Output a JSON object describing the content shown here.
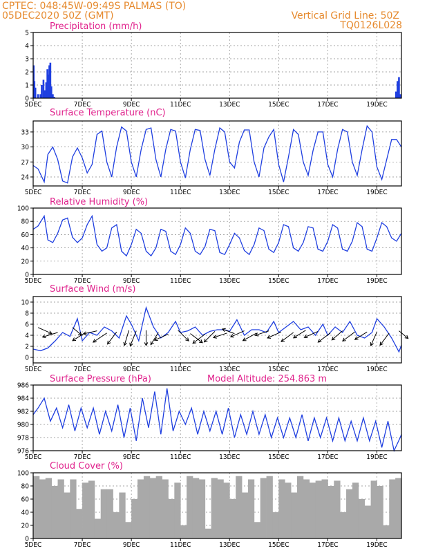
{
  "header": {
    "line1_left": "CPTEC:   048:45W-09:49S   PALMAS (TO)",
    "line2_left": "05DEC2020 50Z (GMT)",
    "line1_right": "Vertical Grid Line: 50Z",
    "line2_right": "TQ0126L028"
  },
  "colors": {
    "header": "#e68a2e",
    "title": "#e0228c",
    "series": "#1f3fe0",
    "cloud": "#a9a9a9"
  },
  "chart_data": [
    {
      "type": "bar",
      "title": "Precipitation (mm/h)",
      "x_ticks": [
        "5DEC",
        "7DEC",
        "9DEC",
        "11DEC",
        "13DEC",
        "15DEC",
        "17DEC",
        "19DEC"
      ],
      "y_ticks": [
        0,
        1,
        2,
        3,
        4,
        5
      ],
      "ylim": [
        0,
        5
      ],
      "xlim_days": [
        5,
        20
      ],
      "grid": true,
      "bars": [
        [
          5.02,
          2.5
        ],
        [
          5.05,
          1.3
        ],
        [
          5.09,
          0.8
        ],
        [
          5.2,
          0.3
        ],
        [
          5.3,
          0.3
        ],
        [
          5.35,
          1.0
        ],
        [
          5.42,
          1.4
        ],
        [
          5.48,
          0.6
        ],
        [
          5.53,
          1.2
        ],
        [
          5.58,
          2.2
        ],
        [
          5.62,
          1.8
        ],
        [
          5.66,
          2.5
        ],
        [
          5.7,
          2.7
        ],
        [
          5.74,
          0.9
        ],
        [
          5.8,
          0.3
        ],
        [
          5.86,
          0.1
        ],
        [
          19.78,
          0.5
        ],
        [
          19.84,
          1.3
        ],
        [
          19.9,
          1.6
        ],
        [
          19.95,
          0.3
        ]
      ]
    },
    {
      "type": "line",
      "title": "Surface Temperature (nC)",
      "x_ticks": [
        "5DEC",
        "7DEC",
        "9DEC",
        "11DEC",
        "13DEC",
        "15DEC",
        "17DEC",
        "19DEC"
      ],
      "y_ticks": [
        24,
        27,
        30,
        33
      ],
      "ylim": [
        22.2,
        35.2
      ],
      "xlim_days": [
        5,
        20
      ],
      "grid": true,
      "x": [
        5,
        5.2,
        5.45,
        5.6,
        5.8,
        6.0,
        6.2,
        6.4,
        6.6,
        6.8,
        7.0,
        7.2,
        7.4,
        7.6,
        7.8,
        8.0,
        8.2,
        8.4,
        8.6,
        8.8,
        9.0,
        9.2,
        9.4,
        9.6,
        9.8,
        10.0,
        10.2,
        10.4,
        10.6,
        10.8,
        11.0,
        11.2,
        11.4,
        11.6,
        11.8,
        12.0,
        12.2,
        12.4,
        12.6,
        12.8,
        13.0,
        13.2,
        13.4,
        13.6,
        13.8,
        14.0,
        14.2,
        14.4,
        14.6,
        14.8,
        15.0,
        15.2,
        15.4,
        15.6,
        15.8,
        16.0,
        16.2,
        16.4,
        16.6,
        16.8,
        17.0,
        17.2,
        17.4,
        17.6,
        17.8,
        18.0,
        18.2,
        18.4,
        18.6,
        18.8,
        19.0,
        19.2,
        19.4,
        19.6,
        19.8,
        20.0
      ],
      "y": [
        26.3,
        25.6,
        23.0,
        28.5,
        30.0,
        27.5,
        23.2,
        22.8,
        28.0,
        29.8,
        27.8,
        24.8,
        26.5,
        32.5,
        33.2,
        27.0,
        24.0,
        30.0,
        34.0,
        33.2,
        27.0,
        24.0,
        29.5,
        33.5,
        33.8,
        27.5,
        24.0,
        29.5,
        33.5,
        33.2,
        27.0,
        23.8,
        29.5,
        33.5,
        33.3,
        27.5,
        24.3,
        29.5,
        33.8,
        33.0,
        27.0,
        25.8,
        31.0,
        33.4,
        33.4,
        27.0,
        24.0,
        29.8,
        32.0,
        33.5,
        26.5,
        23.0,
        28.0,
        33.5,
        32.5,
        27.0,
        24.3,
        29.3,
        33.0,
        33.0,
        26.5,
        24.0,
        29.5,
        33.5,
        33.0,
        27.0,
        24.3,
        29.5,
        34.2,
        33.0,
        26.0,
        23.5,
        27.5,
        31.5,
        31.5,
        30.0
      ]
    },
    {
      "type": "line",
      "title": "Relative Humidity (%)",
      "x_ticks": [
        "5DEC",
        "7DEC",
        "9DEC",
        "11DEC",
        "13DEC",
        "15DEC",
        "17DEC",
        "19DEC"
      ],
      "y_ticks": [
        0,
        20,
        40,
        60,
        80,
        100
      ],
      "ylim": [
        0,
        100
      ],
      "xlim_days": [
        5,
        20
      ],
      "grid": true,
      "x": [
        5,
        5.2,
        5.45,
        5.6,
        5.8,
        6.0,
        6.2,
        6.4,
        6.6,
        6.8,
        7.0,
        7.2,
        7.4,
        7.6,
        7.8,
        8.0,
        8.2,
        8.4,
        8.6,
        8.8,
        9.0,
        9.2,
        9.4,
        9.6,
        9.8,
        10.0,
        10.2,
        10.4,
        10.6,
        10.8,
        11.0,
        11.2,
        11.4,
        11.6,
        11.8,
        12.0,
        12.2,
        12.4,
        12.6,
        12.8,
        13.0,
        13.2,
        13.4,
        13.6,
        13.8,
        14.0,
        14.2,
        14.4,
        14.6,
        14.8,
        15.0,
        15.2,
        15.4,
        15.6,
        15.8,
        16.0,
        16.2,
        16.4,
        16.6,
        16.8,
        17.0,
        17.2,
        17.4,
        17.6,
        17.8,
        18.0,
        18.2,
        18.4,
        18.6,
        18.8,
        19.0,
        19.2,
        19.4,
        19.6,
        19.8,
        20.0
      ],
      "y": [
        68,
        73,
        88,
        52,
        48,
        62,
        82,
        85,
        56,
        48,
        55,
        75,
        88,
        45,
        35,
        40,
        70,
        75,
        35,
        28,
        45,
        68,
        62,
        35,
        28,
        40,
        68,
        65,
        35,
        30,
        45,
        70,
        62,
        35,
        30,
        42,
        68,
        66,
        33,
        30,
        45,
        62,
        55,
        36,
        30,
        45,
        70,
        66,
        38,
        33,
        48,
        75,
        72,
        40,
        35,
        48,
        72,
        70,
        38,
        35,
        50,
        75,
        70,
        38,
        35,
        50,
        78,
        72,
        38,
        35,
        55,
        78,
        72,
        55,
        50,
        62
      ]
    },
    {
      "type": "line",
      "title": "Surface Wind (m/s)",
      "x_ticks": [
        "5DEC",
        "7DEC",
        "9DEC",
        "11DEC",
        "13DEC",
        "15DEC",
        "17DEC",
        "19DEC"
      ],
      "y_ticks": [
        0,
        2,
        4,
        6,
        8,
        10
      ],
      "ylim": [
        -1,
        11
      ],
      "xlim_days": [
        5,
        20
      ],
      "grid": true,
      "x": [
        5,
        5.3,
        5.6,
        5.9,
        6.2,
        6.5,
        6.8,
        7.0,
        7.3,
        7.6,
        7.9,
        8.2,
        8.5,
        8.8,
        9.0,
        9.3,
        9.6,
        9.9,
        10.2,
        10.5,
        10.8,
        11.0,
        11.3,
        11.6,
        11.9,
        12.2,
        12.5,
        12.8,
        13.0,
        13.3,
        13.6,
        13.9,
        14.2,
        14.5,
        14.8,
        15.0,
        15.3,
        15.6,
        15.9,
        16.2,
        16.5,
        16.8,
        17.0,
        17.3,
        17.6,
        17.9,
        18.2,
        18.5,
        18.8,
        19.0,
        19.3,
        19.6,
        19.9,
        20.0
      ],
      "y": [
        1.5,
        1.2,
        1.7,
        3.0,
        4.5,
        3.8,
        7.0,
        3.0,
        4.5,
        4.0,
        5.5,
        4.8,
        3.5,
        7.5,
        6.0,
        3.0,
        9.0,
        5.5,
        3.5,
        4.5,
        6.5,
        4.5,
        4.8,
        5.5,
        4.0,
        4.7,
        5.0,
        5.0,
        4.7,
        6.8,
        4.0,
        5.0,
        5.0,
        4.5,
        6.5,
        4.5,
        5.5,
        6.5,
        5.0,
        5.5,
        4.0,
        6.0,
        4.0,
        5.5,
        4.5,
        6.5,
        4.0,
        3.5,
        4.5,
        7.0,
        5.5,
        3.5,
        1.0,
        2.2
      ],
      "arrows": [
        [
          5.2,
          5.4,
          0.9,
          -0.4
        ],
        [
          6.0,
          4.5,
          -1.0,
          -0.3
        ],
        [
          6.6,
          5.4,
          0.6,
          -0.5
        ],
        [
          7.1,
          4.4,
          -0.8,
          -0.5
        ],
        [
          7.6,
          4.8,
          -0.9,
          -0.2
        ],
        [
          8.0,
          4.4,
          -0.9,
          -0.6
        ],
        [
          8.4,
          4.6,
          -0.6,
          -0.8
        ],
        [
          8.9,
          4.9,
          -0.3,
          -1.0
        ],
        [
          9.2,
          4.8,
          -0.4,
          -1.0
        ],
        [
          9.6,
          4.9,
          0.0,
          -1.0
        ],
        [
          10.1,
          4.5,
          -0.5,
          -0.8
        ],
        [
          10.5,
          4.2,
          -0.9,
          -0.4
        ],
        [
          10.9,
          4.9,
          0.7,
          -0.7
        ],
        [
          11.4,
          4.3,
          0.8,
          -0.6
        ],
        [
          12.0,
          4.2,
          -0.8,
          -0.6
        ],
        [
          12.4,
          4.7,
          -0.7,
          -0.7
        ],
        [
          12.9,
          4.4,
          -0.9,
          -0.3
        ],
        [
          13.2,
          4.3,
          -0.8,
          0.3
        ],
        [
          13.6,
          4.8,
          -0.9,
          -0.4
        ],
        [
          14.1,
          4.4,
          -0.9,
          -0.5
        ],
        [
          14.6,
          4.8,
          -0.9,
          -0.3
        ],
        [
          15.1,
          4.6,
          -0.9,
          -0.4
        ],
        [
          15.6,
          4.5,
          -0.8,
          -0.6
        ],
        [
          16.1,
          4.9,
          -0.8,
          -0.5
        ],
        [
          16.6,
          4.7,
          -0.9,
          -0.4
        ],
        [
          17.1,
          4.4,
          -0.8,
          -0.6
        ],
        [
          17.6,
          4.8,
          -0.7,
          -0.6
        ],
        [
          18.1,
          4.6,
          -0.8,
          -0.6
        ],
        [
          18.6,
          4.6,
          -0.8,
          -0.5
        ],
        [
          19.0,
          4.6,
          -0.4,
          -0.9
        ],
        [
          19.5,
          4.4,
          -0.6,
          -0.8
        ],
        [
          19.9,
          4.8,
          0.6,
          -0.5
        ]
      ]
    },
    {
      "type": "line",
      "title": "Surface Pressure (hPa)",
      "annotation": "Model Altitude: 254.863 m",
      "x_ticks": [
        "5DEC",
        "7DEC",
        "9DEC",
        "11DEC",
        "13DEC",
        "15DEC",
        "17DEC",
        "19DEC"
      ],
      "y_ticks": [
        976,
        978,
        980,
        982,
        984,
        986
      ],
      "ylim": [
        976,
        986
      ],
      "xlim_days": [
        5,
        20
      ],
      "grid": true,
      "x": [
        5,
        5.2,
        5.45,
        5.7,
        5.95,
        6.2,
        6.45,
        6.7,
        6.95,
        7.2,
        7.45,
        7.7,
        7.95,
        8.2,
        8.45,
        8.7,
        8.95,
        9.2,
        9.45,
        9.7,
        9.95,
        10.2,
        10.45,
        10.7,
        10.95,
        11.2,
        11.45,
        11.7,
        11.95,
        12.2,
        12.45,
        12.7,
        12.95,
        13.2,
        13.45,
        13.7,
        13.95,
        14.2,
        14.45,
        14.7,
        14.95,
        15.2,
        15.45,
        15.7,
        15.95,
        16.2,
        16.45,
        16.7,
        16.95,
        17.2,
        17.45,
        17.7,
        17.95,
        18.2,
        18.45,
        18.7,
        18.95,
        19.2,
        19.45,
        19.7,
        19.95,
        20.0
      ],
      "y": [
        981.5,
        982.5,
        984,
        980.5,
        982.5,
        979.5,
        983,
        979,
        982.5,
        979.5,
        982.5,
        978.5,
        982,
        979,
        983,
        978,
        982.5,
        977.5,
        984,
        979.5,
        985,
        978.5,
        985.5,
        979,
        982,
        980,
        982.5,
        978.5,
        982,
        979,
        982,
        978.5,
        982.5,
        978,
        981.5,
        978.5,
        982,
        978.5,
        981.5,
        978,
        981,
        978,
        981,
        978,
        981.5,
        977.5,
        981,
        978,
        981,
        977.5,
        981,
        977.5,
        980.5,
        977.5,
        981,
        977.5,
        980.5,
        976.5,
        980.5,
        976,
        978,
        978.5
      ]
    },
    {
      "type": "bar",
      "title": "Cloud Cover (%)",
      "x_ticks": [
        "5DEC",
        "7DEC",
        "9DEC",
        "11DEC",
        "13DEC",
        "15DEC",
        "17DEC",
        "19DEC"
      ],
      "y_ticks": [
        0,
        20,
        40,
        60,
        80,
        100
      ],
      "ylim": [
        0,
        100
      ],
      "xlim_days": [
        5,
        20
      ],
      "grid": true,
      "x": [
        5.25,
        5.5,
        5.75,
        6.0,
        6.25,
        6.5,
        6.75,
        7.0,
        7.25,
        7.5,
        7.75,
        8.0,
        8.25,
        8.5,
        8.75,
        9.0,
        9.25,
        9.5,
        9.75,
        10.0,
        10.25,
        10.5,
        10.75,
        11.0,
        11.25,
        11.5,
        11.75,
        12.0,
        12.25,
        12.5,
        12.75,
        13.0,
        13.25,
        13.5,
        13.75,
        14.0,
        14.25,
        14.5,
        14.75,
        15.0,
        15.25,
        15.5,
        15.75,
        16.0,
        16.25,
        16.5,
        16.75,
        17.0,
        17.25,
        17.5,
        17.75,
        18.0,
        18.25,
        18.5,
        18.75,
        19.0,
        19.25,
        19.5,
        19.75,
        20.0
      ],
      "values": [
        95,
        90,
        92,
        80,
        90,
        70,
        90,
        45,
        85,
        88,
        30,
        75,
        75,
        40,
        70,
        25,
        60,
        90,
        95,
        92,
        95,
        90,
        60,
        85,
        20,
        95,
        92,
        90,
        15,
        92,
        90,
        85,
        60,
        95,
        70,
        90,
        25,
        92,
        95,
        40,
        90,
        85,
        70,
        95,
        90,
        85,
        88,
        90,
        80,
        88,
        40,
        75,
        85,
        60,
        50,
        88,
        80,
        20,
        90,
        92
      ]
    }
  ]
}
